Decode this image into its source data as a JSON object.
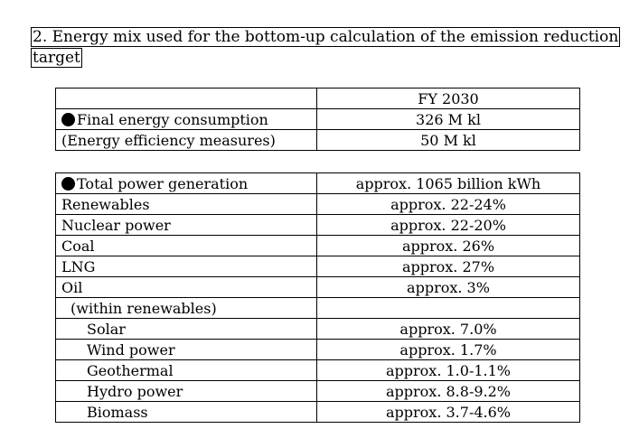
{
  "heading": "2. Energy mix used for the bottom-up calculation of the emission reduction target",
  "energy_table": {
    "header": {
      "label": "",
      "value": "FY 2030"
    },
    "rows": [
      {
        "label": "Final energy consumption",
        "value": "326 M kl",
        "bullet": true
      },
      {
        "label": "(Energy efficiency measures)",
        "value": "50 M kl",
        "bullet": false
      }
    ]
  },
  "power_table": {
    "rows": [
      {
        "label": "Total power generation",
        "value": "approx. 1065 billion kWh",
        "bullet": true
      },
      {
        "label": "Renewables",
        "value": "approx. 22-24%"
      },
      {
        "label": "Nuclear power",
        "value": "approx. 22-20%"
      },
      {
        "label": "Coal",
        "value": "approx. 26%"
      },
      {
        "label": "LNG",
        "value": "approx. 27%"
      },
      {
        "label": "Oil",
        "value": "approx. 3%"
      },
      {
        "label": "(within renewables)",
        "value": ""
      },
      {
        "label": "Solar",
        "value": "approx. 7.0%"
      },
      {
        "label": "Wind power",
        "value": "approx. 1.7%"
      },
      {
        "label": "Geothermal",
        "value": "approx. 1.0-1.1%"
      },
      {
        "label": "Hydro power",
        "value": "approx. 8.8-9.2%"
      },
      {
        "label": "Biomass",
        "value": "approx. 3.7-4.6%"
      }
    ]
  },
  "icons": {
    "bullet": "black-circle-icon"
  }
}
